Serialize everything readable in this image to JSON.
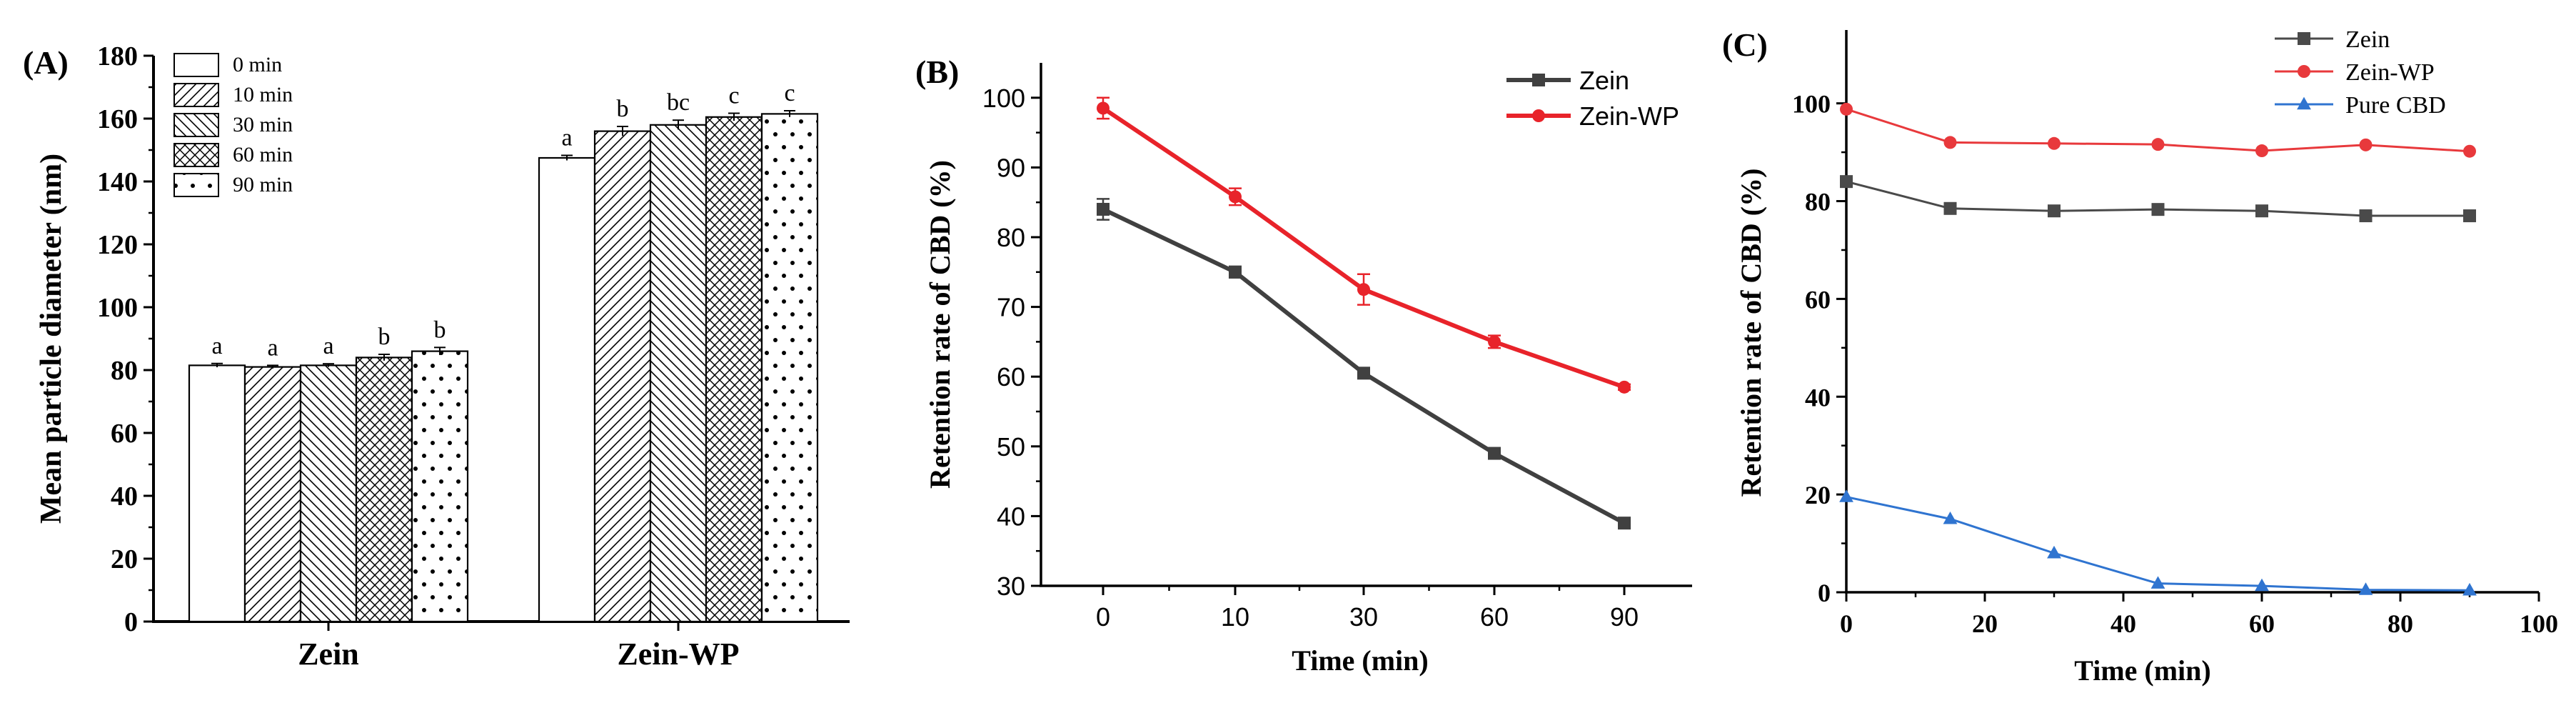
{
  "chart_data": [
    {
      "panel_label": "(A)",
      "type": "bar",
      "categories": [
        "Zein",
        "Zein-WP"
      ],
      "series": [
        {
          "name": "0 min",
          "values": [
            81.5,
            147.5
          ],
          "errors": [
            0.6,
            0.8
          ],
          "letters": [
            "a",
            "a"
          ],
          "pattern": "none"
        },
        {
          "name": "10 min",
          "values": [
            81.0,
            156.0
          ],
          "errors": [
            0.5,
            1.5
          ],
          "letters": [
            "a",
            "b"
          ],
          "pattern": "diag-up"
        },
        {
          "name": "30 min",
          "values": [
            81.5,
            158.0
          ],
          "errors": [
            0.5,
            1.5
          ],
          "letters": [
            "a",
            "bc"
          ],
          "pattern": "diag-down"
        },
        {
          "name": "60 min",
          "values": [
            84.0,
            160.5
          ],
          "errors": [
            1.0,
            1.2
          ],
          "letters": [
            "b",
            "c"
          ],
          "pattern": "crosshatch"
        },
        {
          "name": "90 min",
          "values": [
            86.0,
            161.5
          ],
          "errors": [
            1.2,
            1.0
          ],
          "letters": [
            "b",
            "c"
          ],
          "pattern": "dots"
        }
      ],
      "ylabel": "Mean particle diameter (nm)",
      "ylim": [
        0,
        180
      ],
      "yticks": [
        0,
        20,
        40,
        60,
        80,
        100,
        120,
        140,
        160,
        180
      ],
      "legend_position": "top-left"
    },
    {
      "panel_label": "(B)",
      "type": "line",
      "categories": [
        "0",
        "10",
        "30",
        "60",
        "90"
      ],
      "series": [
        {
          "name": "Zein",
          "values": [
            84.0,
            75.0,
            60.5,
            49.0,
            39.0
          ],
          "errors": [
            1.5,
            0.8,
            0.4,
            0.4,
            0.4
          ],
          "color": "#404040",
          "marker": "square"
        },
        {
          "name": "Zein-WP",
          "values": [
            98.5,
            85.8,
            72.5,
            65.0,
            58.5
          ],
          "errors": [
            1.5,
            1.2,
            2.2,
            0.9,
            0.4
          ],
          "color": "#e8232a",
          "marker": "circle"
        }
      ],
      "xlabel": "Time (min)",
      "ylabel": "Retention rate of CBD (%)",
      "ylim": [
        30,
        105
      ],
      "yticks": [
        30,
        40,
        50,
        60,
        70,
        80,
        90,
        100
      ],
      "legend_position": "top-right"
    },
    {
      "panel_label": "(C)",
      "type": "line",
      "series": [
        {
          "name": "Zein",
          "x": [
            0,
            15,
            30,
            45,
            60,
            75,
            90
          ],
          "values": [
            84.0,
            78.5,
            78.0,
            78.3,
            78.0,
            77.0,
            77.0
          ],
          "color": "#4a4a4a",
          "marker": "square"
        },
        {
          "name": "Zein-WP",
          "x": [
            0,
            15,
            30,
            45,
            60,
            75,
            90
          ],
          "values": [
            98.8,
            92.0,
            91.8,
            91.6,
            90.3,
            91.5,
            90.2
          ],
          "color": "#e8393c",
          "marker": "circle"
        },
        {
          "name": "Pure CBD",
          "x": [
            0,
            15,
            30,
            45,
            60,
            75,
            90
          ],
          "values": [
            19.5,
            15.0,
            8.0,
            1.8,
            1.3,
            0.5,
            0.4
          ],
          "color": "#2f74d0",
          "marker": "triangle"
        }
      ],
      "xlabel": "Time (min)",
      "ylabel": "Retention rate of CBD (%)",
      "xlim": [
        0,
        100
      ],
      "ylim": [
        0,
        115
      ],
      "xticks": [
        0,
        20,
        40,
        60,
        80,
        100
      ],
      "yticks": [
        0,
        20,
        40,
        60,
        80,
        100
      ],
      "legend_position": "top-right"
    }
  ]
}
